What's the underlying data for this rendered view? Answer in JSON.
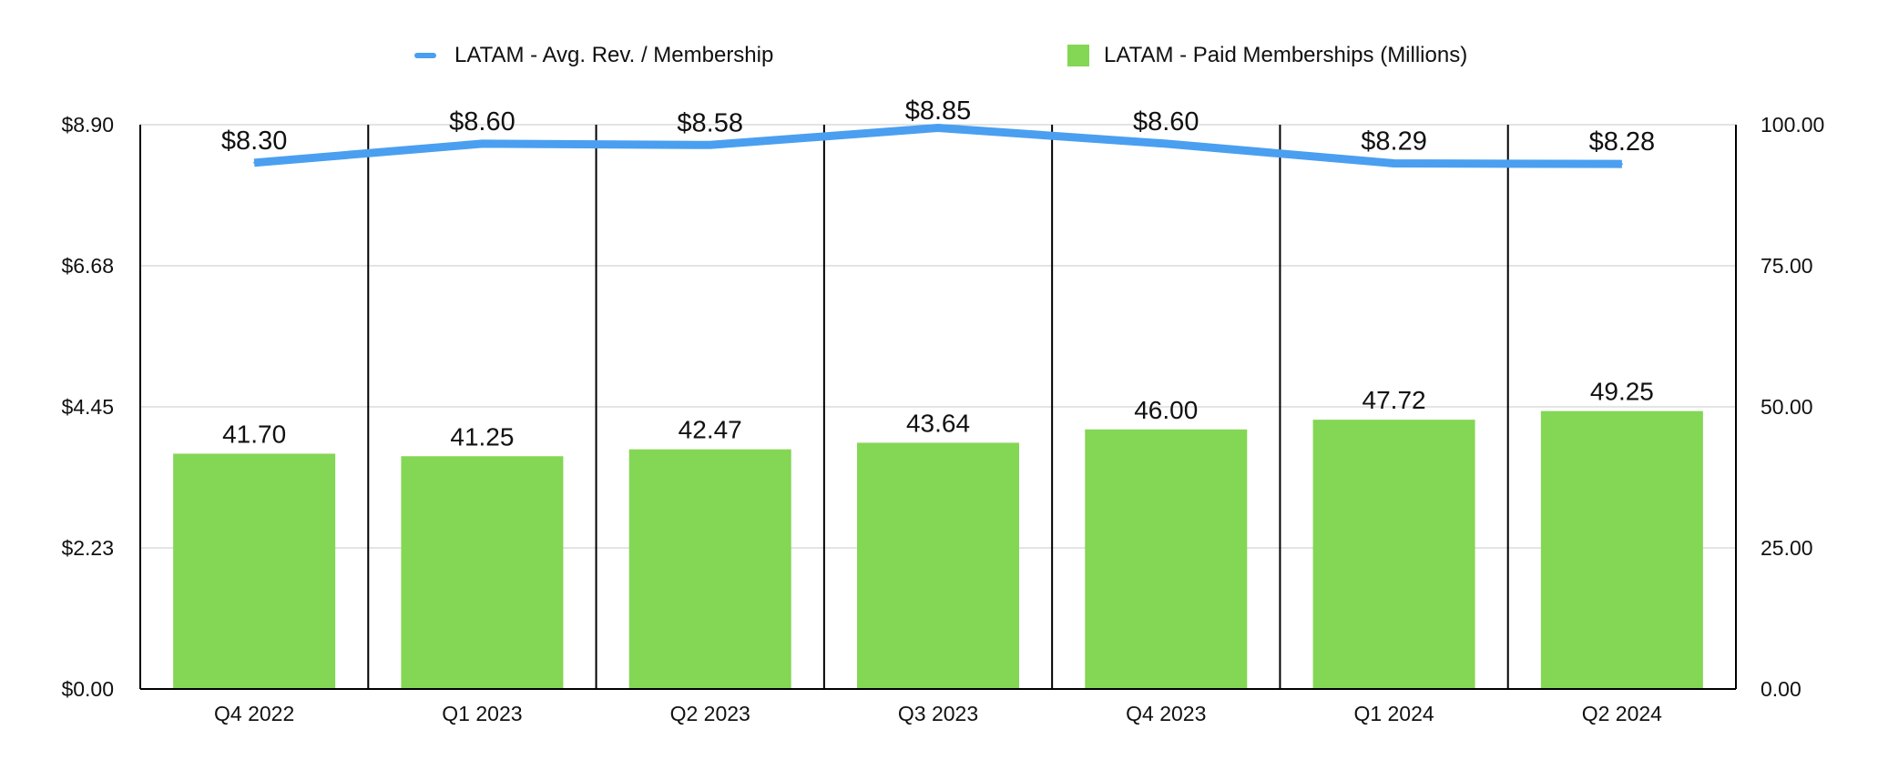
{
  "chart_data": {
    "type": "bar+line",
    "categories": [
      "Q4 2022",
      "Q1 2023",
      "Q2 2023",
      "Q3 2023",
      "Q4 2023",
      "Q1 2024",
      "Q2 2024"
    ],
    "series": [
      {
        "name": "LATAM - Avg. Rev. / Membership",
        "type": "line",
        "axis": "left",
        "values": [
          8.3,
          8.6,
          8.58,
          8.85,
          8.6,
          8.29,
          8.28
        ],
        "labels": [
          "$8.30",
          "$8.60",
          "$8.58",
          "$8.85",
          "$8.60",
          "$8.29",
          "$8.28"
        ],
        "color": "#4a9ff0"
      },
      {
        "name": "LATAM - Paid Memberships (Millions)",
        "type": "bar",
        "axis": "right",
        "values": [
          41.7,
          41.25,
          42.47,
          43.64,
          46.0,
          47.72,
          49.25
        ],
        "labels": [
          "41.70",
          "41.25",
          "42.47",
          "43.64",
          "46.00",
          "47.72",
          "49.25"
        ],
        "color": "#84d655"
      }
    ],
    "y_left": {
      "ylim": [
        0,
        8.9
      ],
      "ticks": [
        0,
        2.225,
        4.45,
        6.675,
        8.9
      ],
      "tick_labels": [
        "$0.00",
        "$2.23",
        "$4.45",
        "$6.68",
        "$8.90"
      ]
    },
    "y_right": {
      "ylim": [
        0,
        100
      ],
      "ticks": [
        0,
        25,
        50,
        75,
        100
      ],
      "tick_labels": [
        "0.00",
        "25.00",
        "50.00",
        "75.00",
        "100.00"
      ]
    },
    "grid": true,
    "legend_position": "top",
    "title": "",
    "xlabel": "",
    "ylabel": ""
  }
}
